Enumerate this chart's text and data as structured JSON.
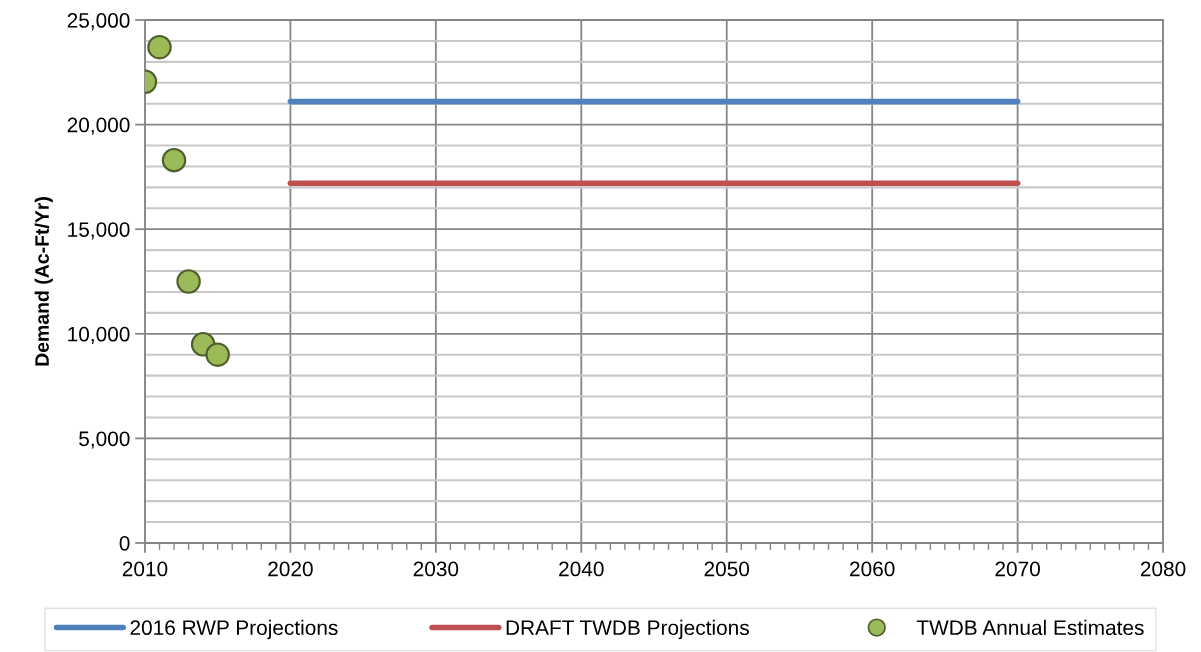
{
  "chart_data": {
    "type": "line",
    "ylabel": "Demand (Ac-Ft/Yr)",
    "xlim": [
      2010,
      2080
    ],
    "xticks": [
      2010,
      2020,
      2030,
      2040,
      2050,
      2060,
      2070,
      2080
    ],
    "ylim": [
      0,
      25000
    ],
    "yticks": [
      0,
      {
        "value": 5000,
        "label": "5,000"
      },
      {
        "value": 10000,
        "label": "10,000"
      },
      {
        "value": 15000,
        "label": "15,000"
      },
      {
        "value": 20000,
        "label": "20,000"
      },
      {
        "value": 25000,
        "label": "25,000"
      }
    ],
    "grid": true,
    "legend": "bottom",
    "series": [
      {
        "name": "2016 RWP Projections",
        "color": "#4f81bd",
        "x": [
          2020,
          2030,
          2040,
          2050,
          2060,
          2070
        ],
        "values": [
          21100,
          21100,
          21100,
          21100,
          21100,
          21100
        ]
      },
      {
        "name": "DRAFT TWDB Projections",
        "color": "#c0504d",
        "x": [
          2020,
          2030,
          2040,
          2050,
          2060,
          2070
        ],
        "values": [
          17200,
          17200,
          17200,
          17200,
          17200,
          17200
        ]
      },
      {
        "name": "TWDB Annual Estimates",
        "type": "scatter",
        "marker": "circle",
        "color": "#9bbb59",
        "x": [
          2010,
          2011,
          2012,
          2013,
          2014,
          2015
        ],
        "values": [
          22050,
          23700,
          18300,
          12500,
          9500,
          9000
        ]
      }
    ]
  }
}
